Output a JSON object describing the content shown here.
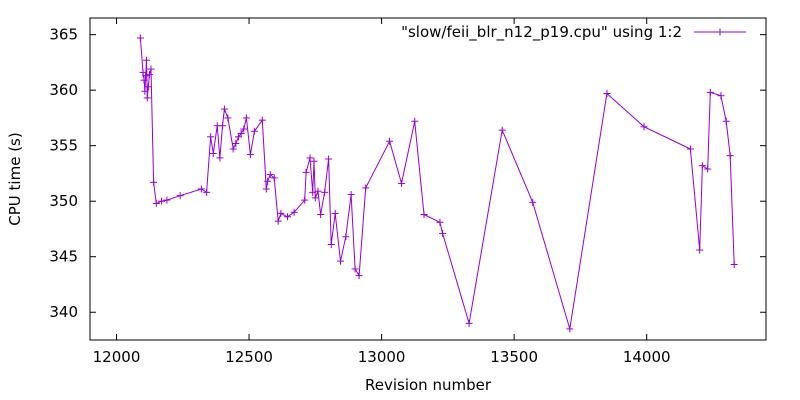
{
  "chart_data": {
    "type": "line",
    "xlabel": "Revision number",
    "ylabel": "CPU time (s)",
    "xlim": [
      11900,
      14450
    ],
    "ylim": [
      337.5,
      366.5
    ],
    "xticks": [
      12000,
      12500,
      13000,
      13500,
      14000
    ],
    "yticks": [
      340,
      345,
      350,
      355,
      360,
      365
    ],
    "grid": false,
    "legend_position": "top-right",
    "series": [
      {
        "name": "\"slow/feii_blr_n12_p19.cpu\" using 1:2",
        "color": "#9400d3",
        "marker": "plus",
        "points": [
          [
            12090,
            364.7
          ],
          [
            12100,
            361.6
          ],
          [
            12104,
            360.9
          ],
          [
            12107,
            359.9
          ],
          [
            12110,
            361.3
          ],
          [
            12113,
            362.7
          ],
          [
            12116,
            359.3
          ],
          [
            12120,
            360.3
          ],
          [
            12124,
            361.4
          ],
          [
            12130,
            361.9
          ],
          [
            12140,
            351.7
          ],
          [
            12150,
            349.8
          ],
          [
            12170,
            350.0
          ],
          [
            12190,
            350.1
          ],
          [
            12240,
            350.5
          ],
          [
            12320,
            351.1
          ],
          [
            12340,
            350.8
          ],
          [
            12355,
            355.8
          ],
          [
            12365,
            354.3
          ],
          [
            12380,
            356.8
          ],
          [
            12390,
            353.9
          ],
          [
            12400,
            356.8
          ],
          [
            12407,
            358.3
          ],
          [
            12420,
            357.5
          ],
          [
            12440,
            354.7
          ],
          [
            12450,
            355.2
          ],
          [
            12460,
            355.8
          ],
          [
            12470,
            356.1
          ],
          [
            12480,
            356.5
          ],
          [
            12490,
            357.5
          ],
          [
            12505,
            354.2
          ],
          [
            12520,
            356.3
          ],
          [
            12550,
            357.3
          ],
          [
            12565,
            351.1
          ],
          [
            12570,
            351.8
          ],
          [
            12580,
            352.4
          ],
          [
            12595,
            352.1
          ],
          [
            12610,
            348.2
          ],
          [
            12620,
            348.9
          ],
          [
            12645,
            348.6
          ],
          [
            12670,
            349.0
          ],
          [
            12710,
            350.1
          ],
          [
            12715,
            352.6
          ],
          [
            12730,
            353.9
          ],
          [
            12740,
            350.8
          ],
          [
            12745,
            353.6
          ],
          [
            12750,
            350.3
          ],
          [
            12760,
            350.9
          ],
          [
            12770,
            348.8
          ],
          [
            12785,
            350.8
          ],
          [
            12800,
            353.8
          ],
          [
            12810,
            346.1
          ],
          [
            12825,
            348.9
          ],
          [
            12845,
            344.6
          ],
          [
            12865,
            346.8
          ],
          [
            12885,
            350.6
          ],
          [
            12900,
            343.9
          ],
          [
            12915,
            343.3
          ],
          [
            12940,
            351.2
          ],
          [
            13030,
            355.4
          ],
          [
            13075,
            351.6
          ],
          [
            13125,
            357.2
          ],
          [
            13160,
            348.8
          ],
          [
            13220,
            348.1
          ],
          [
            13230,
            347.1
          ],
          [
            13330,
            339.0
          ],
          [
            13455,
            356.4
          ],
          [
            13570,
            349.9
          ],
          [
            13710,
            338.5
          ],
          [
            13850,
            359.7
          ],
          [
            13990,
            356.7
          ],
          [
            14165,
            354.7
          ],
          [
            14200,
            345.6
          ],
          [
            14210,
            353.2
          ],
          [
            14230,
            352.9
          ],
          [
            14240,
            359.8
          ],
          [
            14280,
            359.5
          ],
          [
            14300,
            357.2
          ],
          [
            14315,
            354.1
          ],
          [
            14330,
            344.3
          ]
        ]
      }
    ]
  }
}
